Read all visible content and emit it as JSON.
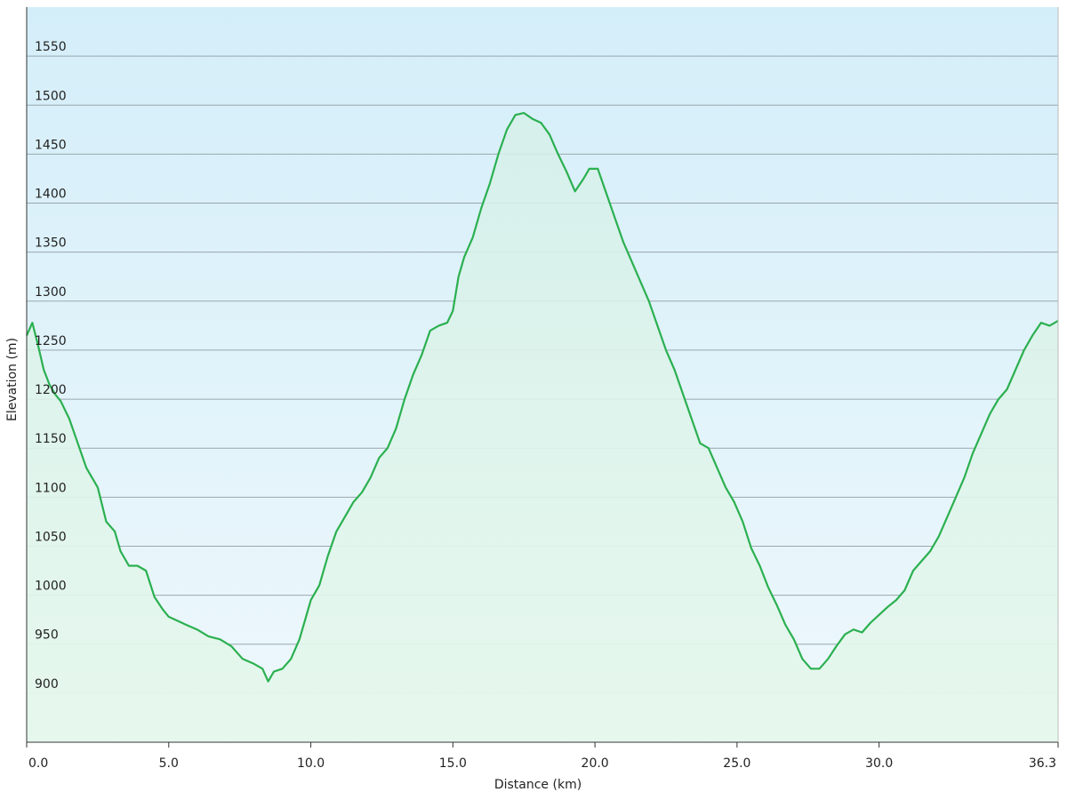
{
  "chart_data": {
    "type": "area",
    "xlabel": "Distance  (km)",
    "ylabel": "Elevation (m)",
    "xlim": [
      0,
      36.3
    ],
    "ylim": [
      850,
      1600
    ],
    "x_ticks": [
      "0.0",
      "5.0",
      "10.0",
      "15.0",
      "20.0",
      "25.0",
      "30.0",
      "36.3"
    ],
    "x_tick_values": [
      0,
      5,
      10,
      15,
      20,
      25,
      30,
      36.3
    ],
    "y_ticks": [
      "900",
      "950",
      "1000",
      "1050",
      "1100",
      "1150",
      "1200",
      "1250",
      "1300",
      "1350",
      "1400",
      "1450",
      "1500",
      "1550"
    ],
    "y_tick_values": [
      900,
      950,
      1000,
      1050,
      1100,
      1150,
      1200,
      1250,
      1300,
      1350,
      1400,
      1450,
      1500,
      1550
    ],
    "grid": true,
    "series": [
      {
        "x": [
          0,
          0.2,
          0.4,
          0.6,
          0.8,
          1.0,
          1.2,
          1.5,
          1.8,
          2.1,
          2.5,
          2.8,
          3.1,
          3.3,
          3.6,
          3.9,
          4.2,
          4.5,
          4.8,
          5.0,
          5.3,
          5.6,
          6.0,
          6.4,
          6.8,
          7.2,
          7.6,
          8.0,
          8.3,
          8.5,
          8.7,
          9.0,
          9.3,
          9.6,
          9.8,
          10.0,
          10.3,
          10.6,
          10.9,
          11.2,
          11.5,
          11.8,
          12.1,
          12.4,
          12.7,
          13.0,
          13.3,
          13.6,
          13.9,
          14.2,
          14.5,
          14.8,
          15.0,
          15.2,
          15.4,
          15.7,
          16.0,
          16.3,
          16.6,
          16.9,
          17.2,
          17.5,
          17.8,
          18.1,
          18.4,
          18.7,
          19.0,
          19.3,
          19.6,
          19.8,
          20.1,
          20.4,
          20.7,
          21.0,
          21.3,
          21.6,
          21.9,
          22.2,
          22.5,
          22.8,
          23.1,
          23.4,
          23.7,
          24.0,
          24.3,
          24.6,
          24.9,
          25.2,
          25.5,
          25.8,
          26.1,
          26.4,
          26.7,
          27.0,
          27.3,
          27.6,
          27.9,
          28.2,
          28.5,
          28.8,
          29.1,
          29.4,
          29.7,
          30.0,
          30.3,
          30.6,
          30.9,
          31.2,
          31.5,
          31.8,
          32.1,
          32.4,
          32.7,
          33.0,
          33.3,
          33.6,
          33.9,
          34.2,
          34.5,
          34.8,
          35.1,
          35.4,
          35.7,
          36.0,
          36.3
        ],
        "y": [
          1265,
          1278,
          1255,
          1230,
          1215,
          1205,
          1198,
          1180,
          1155,
          1130,
          1110,
          1075,
          1065,
          1045,
          1030,
          1030,
          1025,
          998,
          985,
          978,
          974,
          970,
          965,
          958,
          955,
          948,
          935,
          930,
          925,
          912,
          922,
          925,
          935,
          955,
          975,
          995,
          1010,
          1040,
          1065,
          1080,
          1095,
          1105,
          1120,
          1140,
          1150,
          1170,
          1200,
          1225,
          1245,
          1270,
          1275,
          1278,
          1290,
          1325,
          1345,
          1365,
          1395,
          1420,
          1450,
          1475,
          1490,
          1492,
          1486,
          1482,
          1470,
          1450,
          1432,
          1412,
          1425,
          1435,
          1435,
          1410,
          1385,
          1360,
          1340,
          1320,
          1300,
          1275,
          1250,
          1230,
          1205,
          1180,
          1155,
          1150,
          1130,
          1110,
          1095,
          1075,
          1048,
          1030,
          1008,
          990,
          970,
          955,
          935,
          925,
          925,
          935,
          948,
          960,
          965,
          962,
          972,
          980,
          988,
          995,
          1005,
          1025,
          1035,
          1045,
          1060,
          1080,
          1100,
          1120,
          1145,
          1165,
          1185,
          1200,
          1210,
          1230,
          1250,
          1265,
          1278,
          1275,
          1280
        ]
      }
    ],
    "colors": {
      "line": "#2bb050",
      "fill_top": "#d6f0ea",
      "fill_bottom": "#e6f8ec",
      "bg_top": "#d4eef9",
      "bg_bottom": "#eef8fc",
      "grid": "#9aa7ad",
      "axis": "#333333"
    }
  }
}
